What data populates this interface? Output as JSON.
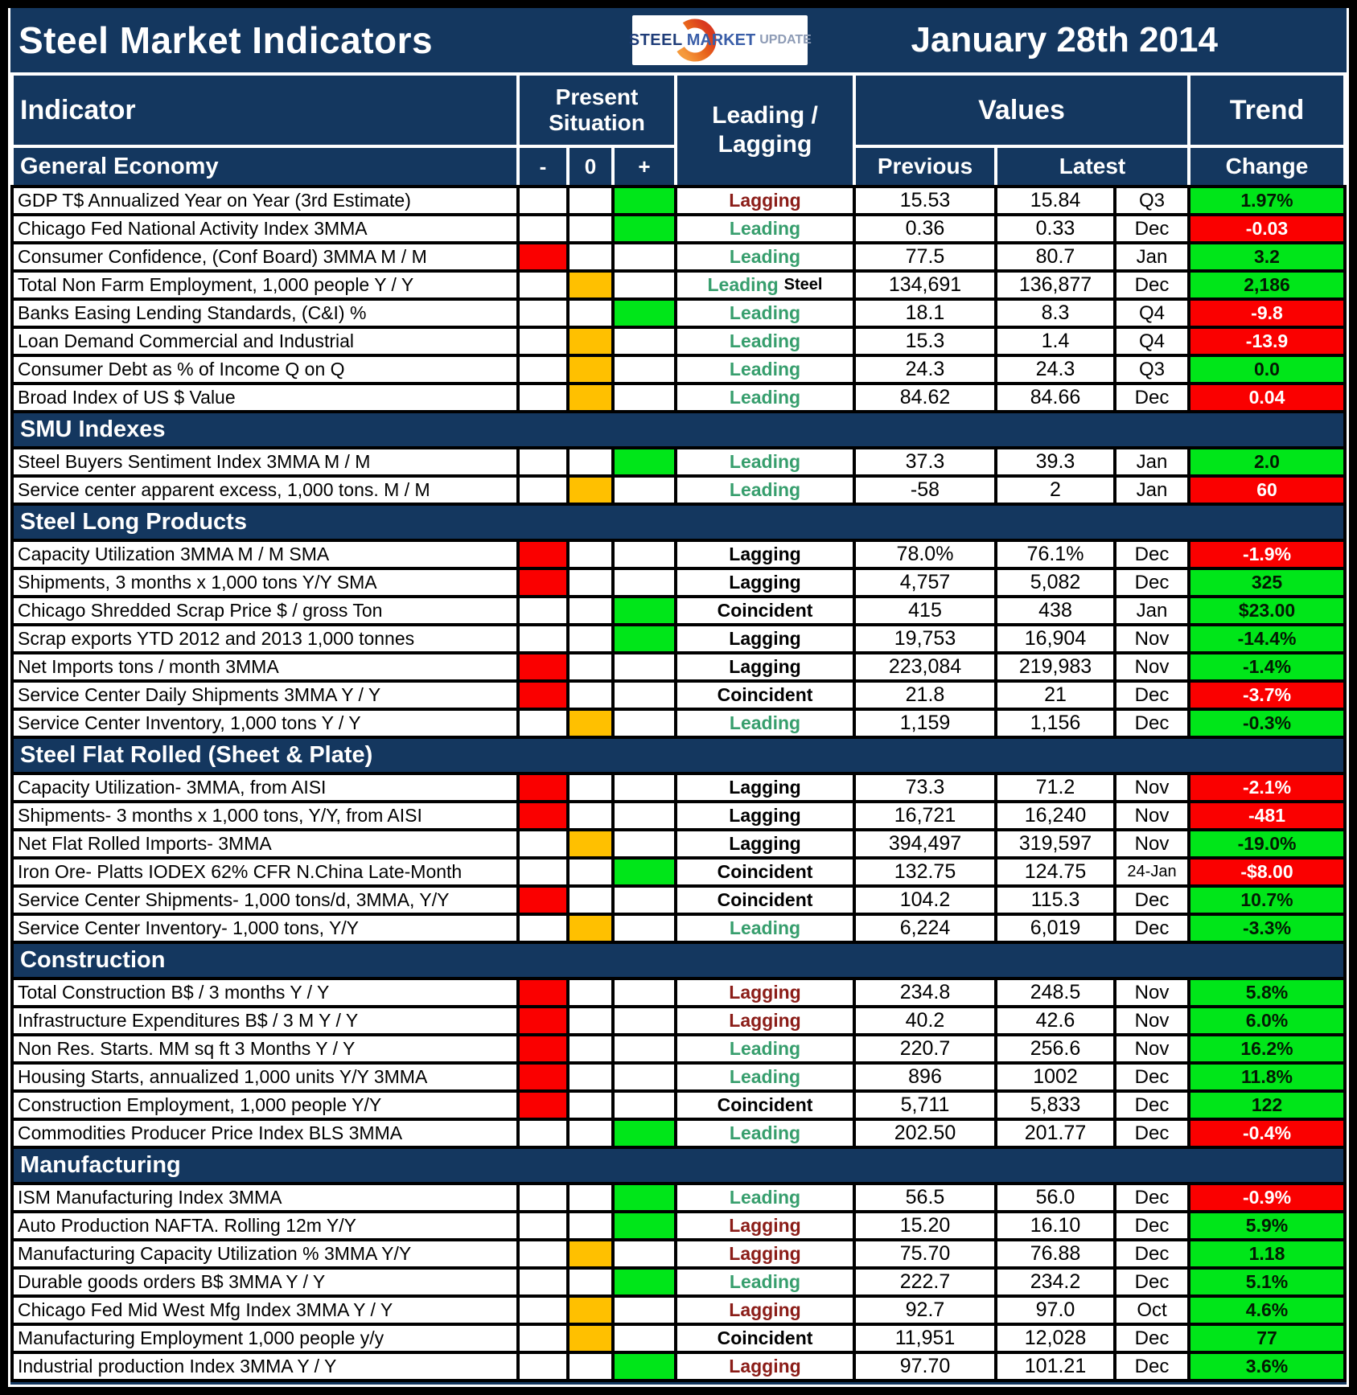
{
  "header": {
    "title": "Steel Market Indicators",
    "date": "January 28th 2014",
    "logo": {
      "steel": "STEEL",
      "market": "MARKET",
      "update": "UPDATE"
    },
    "columns": {
      "indicator": "Indicator",
      "present_situation": "Present Situation",
      "minus": "-",
      "zero": "0",
      "plus": "+",
      "leading_lagging": "Leading / Lagging",
      "values": "Values",
      "previous": "Previous",
      "latest": "Latest",
      "trend": "Trend",
      "change": "Change"
    }
  },
  "colors": {
    "navy": "#14375F",
    "situation_negative": "#FA0000",
    "situation_neutral": "#FFC000",
    "situation_positive": "#00E619",
    "change_good_bg": "#00E619",
    "change_bad_bg": "#FA0000",
    "leading_text": "#379E6D",
    "lagging_text": "#8B1D18",
    "coincident_text": "#000000"
  },
  "sections": [
    {
      "name": "General Economy",
      "rows": [
        {
          "indicator": "GDP T$ Annualized Year on Year (3rd Estimate)",
          "situation": "plus",
          "timing": "Lagging",
          "timing_color": "maroon",
          "previous": "15.53",
          "latest": "15.84",
          "period": "Q3",
          "change": "1.97%",
          "change_color": "green"
        },
        {
          "indicator": "Chicago Fed National Activity Index 3MMA",
          "situation": "plus",
          "timing": "Leading",
          "timing_color": "green",
          "previous": "0.36",
          "latest": "0.33",
          "period": "Dec",
          "change": "-0.03",
          "change_color": "red"
        },
        {
          "indicator": "Consumer Confidence, (Conf Board) 3MMA M / M",
          "situation": "minus",
          "timing": "Leading",
          "timing_color": "green",
          "previous": "77.5",
          "latest": "80.7",
          "period": "Jan",
          "change": "3.2",
          "change_color": "green"
        },
        {
          "indicator": "Total Non Farm Employment, 1,000 people Y / Y",
          "situation": "zero",
          "timing": "Leading",
          "timing_suffix": "Steel",
          "timing_color": "green",
          "previous": "134,691",
          "latest": "136,877",
          "period": "Dec",
          "change": "2,186",
          "change_color": "green"
        },
        {
          "indicator": "Banks Easing Lending Standards, (C&I) %",
          "situation": "plus",
          "timing": "Leading",
          "timing_color": "green",
          "previous": "18.1",
          "latest": "8.3",
          "period": "Q4",
          "change": "-9.8",
          "change_color": "red"
        },
        {
          "indicator": "Loan Demand Commercial and Industrial",
          "situation": "zero",
          "timing": "Leading",
          "timing_color": "green",
          "previous": "15.3",
          "latest": "1.4",
          "period": "Q4",
          "change": "-13.9",
          "change_color": "red"
        },
        {
          "indicator": "Consumer Debt as % of Income Q on Q",
          "situation": "zero",
          "timing": "Leading",
          "timing_color": "green",
          "previous": "24.3",
          "latest": "24.3",
          "period": "Q3",
          "change": "0.0",
          "change_color": "green"
        },
        {
          "indicator": "Broad Index of US $ Value",
          "situation": "zero",
          "timing": "Leading",
          "timing_color": "green",
          "previous": "84.62",
          "latest": "84.66",
          "period": "Dec",
          "change": "0.04",
          "change_color": "red"
        }
      ]
    },
    {
      "name": "SMU Indexes",
      "rows": [
        {
          "indicator": "Steel Buyers Sentiment Index 3MMA M / M",
          "situation": "plus",
          "timing": "Leading",
          "timing_color": "green",
          "previous": "37.3",
          "latest": "39.3",
          "period": "Jan",
          "change": "2.0",
          "change_color": "green"
        },
        {
          "indicator": "Service center apparent excess, 1,000 tons. M / M",
          "situation": "zero",
          "timing": "Leading",
          "timing_color": "green",
          "previous": "-58",
          "latest": "2",
          "period": "Jan",
          "change": "60",
          "change_color": "red"
        }
      ]
    },
    {
      "name": "Steel Long Products",
      "rows": [
        {
          "indicator": "Capacity Utilization 3MMA  M / M SMA",
          "situation": "minus",
          "timing": "Lagging",
          "timing_color": "black",
          "previous": "78.0%",
          "latest": "76.1%",
          "period": "Dec",
          "change": "-1.9%",
          "change_color": "red"
        },
        {
          "indicator": "Shipments, 3 months x 1,000 tons Y/Y SMA",
          "situation": "minus",
          "timing": "Lagging",
          "timing_color": "black",
          "previous": "4,757",
          "latest": "5,082",
          "period": "Dec",
          "change": "325",
          "change_color": "green"
        },
        {
          "indicator": "Chicago Shredded Scrap Price $ / gross Ton",
          "situation": "plus",
          "timing": "Coincident",
          "timing_color": "black",
          "previous": "415",
          "latest": "438",
          "period": "Jan",
          "change": "$23.00",
          "change_color": "green"
        },
        {
          "indicator": "Scrap exports YTD 2012 and 2013 1,000 tonnes",
          "situation": "plus",
          "timing": "Lagging",
          "timing_color": "black",
          "previous": "19,753",
          "latest": "16,904",
          "period": "Nov",
          "change": "-14.4%",
          "change_color": "green"
        },
        {
          "indicator": "Net Imports tons / month 3MMA",
          "situation": "minus",
          "timing": "Lagging",
          "timing_color": "black",
          "previous": "223,084",
          "latest": "219,983",
          "period": "Nov",
          "change": "-1.4%",
          "change_color": "green"
        },
        {
          "indicator": "Service Center Daily Shipments 3MMA Y / Y",
          "situation": "minus",
          "timing": "Coincident",
          "timing_color": "black",
          "previous": "21.8",
          "latest": "21",
          "period": "Dec",
          "change": "-3.7%",
          "change_color": "red"
        },
        {
          "indicator": "Service Center Inventory, 1,000 tons Y / Y",
          "situation": "zero",
          "timing": "Leading",
          "timing_color": "green",
          "previous": "1,159",
          "latest": "1,156",
          "period": "Dec",
          "change": "-0.3%",
          "change_color": "green"
        }
      ]
    },
    {
      "name": "Steel Flat Rolled (Sheet & Plate)",
      "rows": [
        {
          "indicator": "Capacity Utilization- 3MMA, from AISI",
          "situation": "minus",
          "timing": "Lagging",
          "timing_color": "black",
          "previous": "73.3",
          "latest": "71.2",
          "period": "Nov",
          "change": "-2.1%",
          "change_color": "red"
        },
        {
          "indicator": "Shipments- 3 months x 1,000 tons, Y/Y, from AISI",
          "situation": "minus",
          "timing": "Lagging",
          "timing_color": "black",
          "previous": "16,721",
          "latest": "16,240",
          "period": "Nov",
          "change": "-481",
          "change_color": "red"
        },
        {
          "indicator": "Net Flat Rolled Imports- 3MMA",
          "situation": "zero",
          "timing": "Lagging",
          "timing_color": "black",
          "previous": "394,497",
          "latest": "319,597",
          "period": "Nov",
          "change": "-19.0%",
          "change_color": "green"
        },
        {
          "indicator": "Iron Ore- Platts IODEX 62% CFR N.China Late-Month",
          "situation": "plus",
          "timing": "Coincident",
          "timing_color": "black",
          "previous": "132.75",
          "latest": "124.75",
          "period": "24-Jan",
          "change": "-$8.00",
          "change_color": "red"
        },
        {
          "indicator": "Service Center Shipments- 1,000 tons/d, 3MMA, Y/Y",
          "situation": "minus",
          "timing": "Coincident",
          "timing_color": "black",
          "previous": "104.2",
          "latest": "115.3",
          "period": "Dec",
          "change": "10.7%",
          "change_color": "green"
        },
        {
          "indicator": "Service Center Inventory- 1,000 tons, Y/Y",
          "situation": "zero",
          "timing": "Leading",
          "timing_color": "green",
          "previous": "6,224",
          "latest": "6,019",
          "period": "Dec",
          "change": "-3.3%",
          "change_color": "green"
        }
      ]
    },
    {
      "name": "Construction",
      "rows": [
        {
          "indicator": "Total Construction B$ /  3 months Y / Y",
          "situation": "minus",
          "timing": "Lagging",
          "timing_color": "maroon",
          "previous": "234.8",
          "latest": "248.5",
          "period": "Nov",
          "change": "5.8%",
          "change_color": "green"
        },
        {
          "indicator": "Infrastructure Expenditures B$ / 3 M   Y / Y",
          "situation": "minus",
          "timing": "Lagging",
          "timing_color": "maroon",
          "previous": "40.2",
          "latest": "42.6",
          "period": "Nov",
          "change": "6.0%",
          "change_color": "green"
        },
        {
          "indicator": "Non Res. Starts. MM sq ft 3 Months   Y / Y",
          "situation": "minus",
          "timing": "Leading",
          "timing_color": "green",
          "previous": "220.7",
          "latest": "256.6",
          "period": "Nov",
          "change": "16.2%",
          "change_color": "green"
        },
        {
          "indicator": "Housing Starts, annualized 1,000 units Y/Y 3MMA",
          "situation": "minus",
          "timing": "Leading",
          "timing_color": "green",
          "previous": "896",
          "latest": "1002",
          "period": "Dec",
          "change": "11.8%",
          "change_color": "green"
        },
        {
          "indicator": "Construction Employment, 1,000 people Y/Y",
          "situation": "minus",
          "timing": "Coincident",
          "timing_color": "black",
          "previous": "5,711",
          "latest": "5,833",
          "period": "Dec",
          "change": "122",
          "change_color": "green"
        },
        {
          "indicator": "Commodities Producer Price Index BLS 3MMA",
          "situation": "plus",
          "timing": "Leading",
          "timing_color": "green",
          "previous": "202.50",
          "latest": "201.77",
          "period": "Dec",
          "change": "-0.4%",
          "change_color": "red"
        }
      ]
    },
    {
      "name": "Manufacturing",
      "rows": [
        {
          "indicator": "ISM Manufacturing Index 3MMA",
          "situation": "plus",
          "timing": "Leading",
          "timing_color": "green",
          "previous": "56.5",
          "latest": "56.0",
          "period": "Dec",
          "change": "-0.9%",
          "change_color": "red"
        },
        {
          "indicator": "Auto Production NAFTA. Rolling 12m Y/Y",
          "situation": "plus",
          "timing": "Lagging",
          "timing_color": "maroon",
          "previous": "15.20",
          "latest": "16.10",
          "period": "Dec",
          "change": "5.9%",
          "change_color": "green"
        },
        {
          "indicator": "Manufacturing Capacity Utilization % 3MMA Y/Y",
          "situation": "zero",
          "timing": "Lagging",
          "timing_color": "maroon",
          "previous": "75.70",
          "latest": "76.88",
          "period": "Dec",
          "change": "1.18",
          "change_color": "green"
        },
        {
          "indicator": "Durable goods orders B$  3MMA Y / Y",
          "situation": "plus",
          "timing": "Leading",
          "timing_color": "green",
          "previous": "222.7",
          "latest": "234.2",
          "period": "Dec",
          "change": "5.1%",
          "change_color": "green"
        },
        {
          "indicator": "Chicago Fed Mid West Mfg Index 3MMA Y / Y",
          "situation": "zero",
          "timing": "Lagging",
          "timing_color": "maroon",
          "previous": "92.7",
          "latest": "97.0",
          "period": "Oct",
          "change": "4.6%",
          "change_color": "green"
        },
        {
          "indicator": "Manufacturing Employment 1,000 people y/y",
          "situation": "zero",
          "timing": "Coincident",
          "timing_color": "black",
          "previous": "11,951",
          "latest": "12,028",
          "period": "Dec",
          "change": "77",
          "change_color": "green"
        },
        {
          "indicator": "Industrial production Index 3MMA Y / Y",
          "situation": "plus",
          "timing": "Lagging",
          "timing_color": "maroon",
          "previous": "97.70",
          "latest": "101.21",
          "period": "Dec",
          "change": "3.6%",
          "change_color": "green"
        }
      ]
    }
  ]
}
